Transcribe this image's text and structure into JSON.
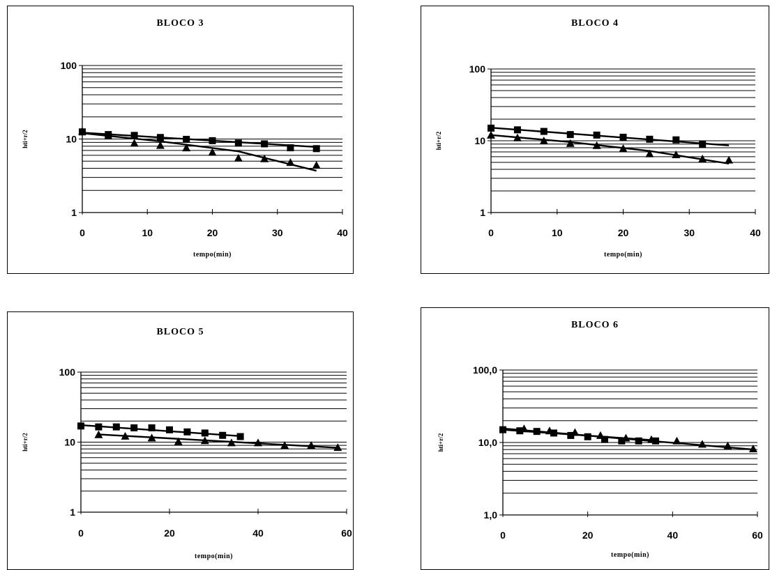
{
  "chart_data": [
    {
      "type": "scatter",
      "title": "BLOCO 3",
      "xlabel": "tempo(min)",
      "ylabel": "hti+r/2",
      "yscale": "log",
      "xlim": [
        0,
        40
      ],
      "ylim": [
        1,
        100
      ],
      "xticks": [
        0,
        10,
        20,
        30,
        40
      ],
      "yticks": [
        1,
        10,
        100
      ],
      "xtick_labels": [
        "0",
        "10",
        "20",
        "30",
        "40"
      ],
      "ytick_labels": [
        "1",
        "10",
        "100"
      ],
      "grid": "horizontal",
      "series": [
        {
          "marker": "square",
          "x": [
            0,
            4,
            8,
            12,
            16,
            20,
            24,
            28,
            32,
            36
          ],
          "y": [
            12.5,
            11.5,
            11.2,
            10.5,
            9.9,
            9.5,
            8.8,
            8.6,
            7.6,
            7.4
          ],
          "trend": [
            [
              0,
              12.2
            ],
            [
              36,
              7.8
            ]
          ]
        },
        {
          "marker": "triangle",
          "x": [
            0,
            4,
            8,
            12,
            16,
            20,
            24,
            28,
            32,
            36
          ],
          "y": [
            12.8,
            11.0,
            8.8,
            8.2,
            7.6,
            6.6,
            5.5,
            5.4,
            4.8,
            4.4
          ],
          "trend": [
            [
              0,
              12.0
            ],
            [
              12,
              9.3
            ],
            [
              24,
              6.8
            ],
            [
              36,
              3.7
            ]
          ]
        }
      ]
    },
    {
      "type": "scatter",
      "title": "BLOCO 4",
      "xlabel": "tempo(min)",
      "ylabel": "hti+r/2",
      "yscale": "log",
      "xlim": [
        0,
        40
      ],
      "ylim": [
        1,
        100
      ],
      "xticks": [
        0,
        10,
        20,
        30,
        40
      ],
      "yticks": [
        1,
        10,
        100
      ],
      "xtick_labels": [
        "0",
        "10",
        "20",
        "30",
        "40"
      ],
      "ytick_labels": [
        "1",
        "10",
        "100"
      ],
      "grid": "horizontal",
      "series": [
        {
          "marker": "square",
          "x": [
            0,
            4,
            8,
            12,
            16,
            20,
            24,
            28,
            32
          ],
          "y": [
            15.0,
            14.2,
            13.5,
            12.2,
            12.0,
            11.2,
            10.5,
            10.3,
            9.0
          ],
          "trend": [
            [
              0,
              15.2
            ],
            [
              36,
              8.6
            ]
          ]
        },
        {
          "marker": "triangle",
          "x": [
            0,
            4,
            8,
            12,
            16,
            20,
            24,
            28,
            32,
            36
          ],
          "y": [
            12.0,
            11.0,
            10.0,
            9.2,
            8.6,
            7.8,
            6.6,
            6.4,
            5.6,
            5.4
          ],
          "trend": [
            [
              0,
              12.0
            ],
            [
              12,
              9.6
            ],
            [
              24,
              7.2
            ],
            [
              36,
              4.8
            ]
          ]
        }
      ]
    },
    {
      "type": "scatter",
      "title": "BLOCO 5",
      "xlabel": "tempo(min)",
      "ylabel": "hti+r/2",
      "yscale": "log",
      "xlim": [
        0,
        60
      ],
      "ylim": [
        1,
        100
      ],
      "xticks": [
        0,
        20,
        40,
        60
      ],
      "yticks": [
        1,
        10,
        100
      ],
      "xtick_labels": [
        "0",
        "20",
        "40",
        "60"
      ],
      "ytick_labels": [
        "1",
        "10",
        "100"
      ],
      "grid": "horizontal",
      "series": [
        {
          "marker": "square",
          "x": [
            0,
            4,
            8,
            12,
            16,
            20,
            24,
            28,
            32,
            36
          ],
          "y": [
            17.0,
            16.5,
            16.5,
            16.0,
            16.0,
            15.0,
            14.0,
            13.5,
            12.5,
            12.0
          ],
          "trend": [
            [
              0,
              17.5
            ],
            [
              36,
              12.2
            ]
          ]
        },
        {
          "marker": "triangle",
          "x": [
            4,
            10,
            16,
            22,
            28,
            34,
            40,
            46,
            52,
            58
          ],
          "y": [
            12.8,
            12.2,
            11.5,
            10.2,
            10.5,
            9.8,
            9.8,
            9.0,
            9.0,
            8.4
          ],
          "trend": [
            [
              4,
              12.9
            ],
            [
              58,
              8.3
            ]
          ]
        }
      ]
    },
    {
      "type": "scatter",
      "title": "BLOCO 6",
      "xlabel": "tempo(min)",
      "ylabel": "hti+r/2",
      "yscale": "log",
      "xlim": [
        0,
        60
      ],
      "ylim": [
        1,
        100
      ],
      "xticks": [
        0,
        20,
        40,
        60
      ],
      "yticks": [
        1,
        10,
        100
      ],
      "xtick_labels": [
        "0",
        "20",
        "40",
        "60"
      ],
      "ytick_labels": [
        "1,0",
        "10,0",
        "100,0"
      ],
      "grid": "horizontal",
      "series": [
        {
          "marker": "square",
          "x": [
            0,
            4,
            8,
            12,
            16,
            20,
            24,
            28,
            32,
            36
          ],
          "y": [
            15.0,
            14.5,
            14.2,
            13.5,
            12.5,
            12.0,
            11.0,
            10.5,
            10.5,
            10.5
          ],
          "trend": [
            [
              0,
              15.0
            ],
            [
              36,
              10.7
            ]
          ]
        },
        {
          "marker": "triangle",
          "x": [
            5,
            11,
            17,
            23,
            29,
            35,
            41,
            47,
            53,
            59
          ],
          "y": [
            15.5,
            14.5,
            13.8,
            12.5,
            11.5,
            11.0,
            10.5,
            9.5,
            9.0,
            8.2
          ],
          "trend": [
            [
              0,
              15.6
            ],
            [
              59,
              8.0
            ]
          ]
        }
      ]
    }
  ]
}
